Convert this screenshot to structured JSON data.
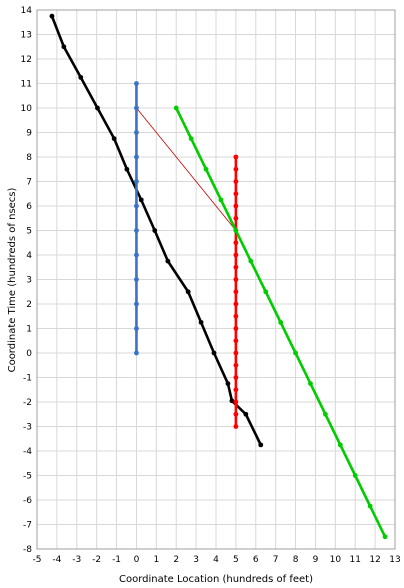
{
  "chart_data": {
    "type": "line",
    "title": "",
    "xlabel": "Coordinate Location (hundreds of feet)",
    "ylabel": "Coordinate Time (hundreds of nsecs)",
    "xlim": [
      -5,
      13
    ],
    "ylim": [
      -8,
      14
    ],
    "xticks": [
      "-5",
      "-4",
      "-3",
      "-2",
      "-1",
      "0",
      "1",
      "2",
      "3",
      "4",
      "5",
      "6",
      "7",
      "8",
      "9",
      "10",
      "11",
      "12",
      "13"
    ],
    "yticks": [
      "-8",
      "-7",
      "-6",
      "-5",
      "-4",
      "-3",
      "-2",
      "-1",
      "0",
      "1",
      "2",
      "3",
      "4",
      "5",
      "6",
      "7",
      "8",
      "9",
      "10",
      "11",
      "12",
      "13",
      "14"
    ],
    "grid": true,
    "legend": "none",
    "series": [
      {
        "color": "#000000",
        "marker": "circle",
        "x": [
          -4.25,
          -3.65,
          -2.8,
          -1.96,
          -1.12,
          -0.48,
          0.24,
          0.92,
          1.58,
          2.6,
          3.25,
          3.9,
          4.6,
          4.8,
          5.5,
          6.25
        ],
        "y": [
          13.75,
          12.5,
          11.25,
          10.0,
          8.75,
          7.5,
          6.25,
          5.0,
          3.75,
          2.5,
          1.25,
          0.0,
          -1.25,
          -1.95,
          -2.5,
          -3.75
        ]
      },
      {
        "color": "#3a72c8",
        "marker": "circle",
        "x": [
          0,
          0,
          0,
          0,
          0,
          0,
          0,
          0,
          0,
          0,
          0,
          0
        ],
        "y": [
          0,
          1,
          2,
          3,
          4,
          5,
          6,
          7,
          8,
          9,
          10,
          11
        ]
      },
      {
        "color": "#ff0000",
        "marker": "circle",
        "x": [
          5,
          5,
          5,
          5,
          5,
          5,
          5,
          5,
          5,
          5,
          5,
          5,
          5,
          5,
          5,
          5,
          5,
          5,
          5,
          5,
          5,
          5,
          5
        ],
        "y": [
          -3,
          -2.5,
          -2,
          -1.5,
          -1,
          -0.5,
          0,
          0.5,
          1,
          1.5,
          2,
          2.5,
          3,
          3.5,
          4,
          4.5,
          5,
          5.5,
          6,
          6.5,
          7,
          7.5,
          8
        ]
      },
      {
        "color": "#00cc00",
        "marker": "circle",
        "x": [
          2,
          2.75,
          3.5,
          4.25,
          5,
          5.75,
          6.5,
          7.25,
          8,
          8.75,
          9.5,
          10.25,
          11,
          11.75,
          12.5
        ],
        "y": [
          10,
          8.75,
          7.5,
          6.25,
          5,
          3.75,
          2.5,
          1.25,
          0,
          -1.25,
          -2.5,
          -3.75,
          -5,
          -6.25,
          -7.5
        ]
      },
      {
        "color": "#cc0000",
        "marker": "none",
        "x": [
          0,
          5
        ],
        "y": [
          10,
          5
        ]
      }
    ]
  }
}
